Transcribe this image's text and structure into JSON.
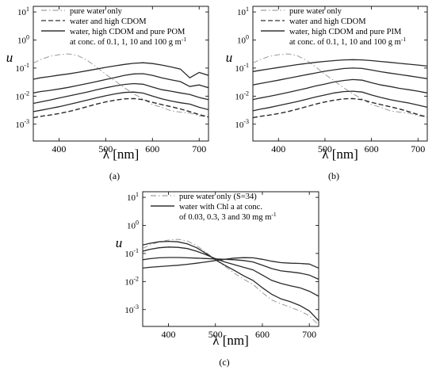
{
  "chart_data": [
    {
      "type": "line",
      "panel_label": "(a)",
      "xlabel": "λ [nm]",
      "ylabel": "u",
      "xlim": [
        345,
        720
      ],
      "ylim_log10": [
        -3.6,
        1.2
      ],
      "yscale": "log",
      "x_ticks": [
        "400",
        "500",
        "600",
        "700"
      ],
      "x_tick_values": [
        400,
        500,
        600,
        700
      ],
      "y_ticks": [
        {
          "base": "10",
          "exp": "1",
          "value": 10
        },
        {
          "base": "10",
          "exp": "0",
          "value": 1
        },
        {
          "base": "10",
          "exp": "-1",
          "value": 0.1
        },
        {
          "base": "10",
          "exp": "-2",
          "value": 0.01
        },
        {
          "base": "10",
          "exp": "-3",
          "value": 0.001
        }
      ],
      "legend": [
        {
          "text": "pure water only",
          "style": "dashdot",
          "color": "#a0a0a0"
        },
        {
          "text": "water and high CDOM",
          "style": "dashed",
          "color": "#333333"
        },
        {
          "text": "water, high CDOM and pure POM",
          "style": "solid",
          "color": "#333333"
        },
        {
          "text": "at conc. of 0.1, 1, 10 and 100 g m",
          "sup": "-1",
          "style": "none"
        }
      ],
      "series": [
        {
          "style": "dashdot",
          "x": [
            345,
            360,
            380,
            400,
            420,
            440,
            460,
            480,
            500,
            520,
            540,
            560,
            580,
            600,
            620,
            640,
            660,
            680,
            700,
            720
          ],
          "y": [
            0.15,
            0.2,
            0.26,
            0.3,
            0.32,
            0.28,
            0.19,
            0.11,
            0.06,
            0.035,
            0.02,
            0.012,
            0.008,
            0.005,
            0.004,
            0.003,
            0.0027,
            0.0025,
            0.002,
            0.0018
          ]
        },
        {
          "style": "dashed",
          "x": [
            345,
            360,
            380,
            400,
            420,
            440,
            460,
            480,
            500,
            520,
            540,
            560,
            580,
            600,
            620,
            640,
            660,
            680,
            700,
            720
          ],
          "y": [
            0.0017,
            0.0019,
            0.0021,
            0.0024,
            0.0028,
            0.0034,
            0.0042,
            0.0052,
            0.0062,
            0.0072,
            0.008,
            0.0082,
            0.0075,
            0.006,
            0.005,
            0.0042,
            0.0035,
            0.0028,
            0.0022,
            0.0018
          ]
        },
        {
          "style": "solid",
          "x": [
            345,
            360,
            380,
            400,
            420,
            440,
            460,
            480,
            500,
            520,
            540,
            560,
            580,
            600,
            620,
            640,
            660,
            680,
            700,
            720
          ],
          "y": [
            0.0028,
            0.0031,
            0.0036,
            0.0042,
            0.005,
            0.006,
            0.0072,
            0.0087,
            0.0103,
            0.012,
            0.0135,
            0.014,
            0.0128,
            0.01,
            0.008,
            0.0067,
            0.0058,
            0.0052,
            0.004,
            0.0033
          ]
        },
        {
          "style": "solid",
          "x": [
            345,
            360,
            380,
            400,
            420,
            440,
            460,
            480,
            500,
            520,
            540,
            560,
            580,
            600,
            620,
            640,
            660,
            680,
            700,
            720
          ],
          "y": [
            0.0055,
            0.0062,
            0.0072,
            0.0085,
            0.01,
            0.0118,
            0.014,
            0.0168,
            0.0198,
            0.023,
            0.026,
            0.028,
            0.0265,
            0.021,
            0.017,
            0.015,
            0.013,
            0.0115,
            0.009,
            0.0075
          ]
        },
        {
          "style": "solid",
          "x": [
            345,
            360,
            380,
            400,
            420,
            440,
            460,
            480,
            500,
            520,
            540,
            560,
            580,
            600,
            620,
            640,
            660,
            680,
            700,
            720
          ],
          "y": [
            0.013,
            0.0145,
            0.016,
            0.018,
            0.0205,
            0.024,
            0.028,
            0.033,
            0.039,
            0.046,
            0.055,
            0.062,
            0.063,
            0.055,
            0.045,
            0.038,
            0.033,
            0.022,
            0.025,
            0.02
          ]
        },
        {
          "style": "solid",
          "x": [
            345,
            360,
            380,
            400,
            420,
            440,
            460,
            480,
            500,
            520,
            540,
            560,
            580,
            600,
            620,
            640,
            660,
            680,
            700,
            720
          ],
          "y": [
            0.04,
            0.045,
            0.05,
            0.056,
            0.062,
            0.07,
            0.08,
            0.092,
            0.106,
            0.12,
            0.135,
            0.148,
            0.155,
            0.145,
            0.128,
            0.11,
            0.092,
            0.045,
            0.07,
            0.055
          ]
        }
      ]
    },
    {
      "type": "line",
      "panel_label": "(b)",
      "xlabel": "λ [nm]",
      "ylabel": "u",
      "xlim": [
        345,
        720
      ],
      "ylim_log10": [
        -3.6,
        1.2
      ],
      "yscale": "log",
      "x_ticks": [
        "400",
        "500",
        "600",
        "700"
      ],
      "x_tick_values": [
        400,
        500,
        600,
        700
      ],
      "y_ticks": [
        {
          "base": "10",
          "exp": "1",
          "value": 10
        },
        {
          "base": "10",
          "exp": "0",
          "value": 1
        },
        {
          "base": "10",
          "exp": "-1",
          "value": 0.1
        },
        {
          "base": "10",
          "exp": "-2",
          "value": 0.01
        },
        {
          "base": "10",
          "exp": "-3",
          "value": 0.001
        }
      ],
      "legend": [
        {
          "text": "pure water only",
          "style": "dashdot",
          "color": "#a0a0a0"
        },
        {
          "text": "water and high CDOM",
          "style": "dashed",
          "color": "#333333"
        },
        {
          "text": "water, high CDOM and pure PIM",
          "style": "solid",
          "color": "#333333"
        },
        {
          "text": "at conc. of 0.1, 1, 10 and 100 g m",
          "sup": "-1",
          "style": "none"
        }
      ],
      "series": [
        {
          "style": "dashdot",
          "x": [
            345,
            360,
            380,
            400,
            420,
            440,
            460,
            480,
            500,
            520,
            540,
            560,
            580,
            600,
            620,
            640,
            660,
            680,
            700,
            720
          ],
          "y": [
            0.15,
            0.2,
            0.26,
            0.3,
            0.32,
            0.28,
            0.19,
            0.11,
            0.06,
            0.035,
            0.02,
            0.012,
            0.008,
            0.005,
            0.004,
            0.003,
            0.0027,
            0.0025,
            0.002,
            0.0018
          ]
        },
        {
          "style": "dashed",
          "x": [
            345,
            360,
            380,
            400,
            420,
            440,
            460,
            480,
            500,
            520,
            540,
            560,
            580,
            600,
            620,
            640,
            660,
            680,
            700,
            720
          ],
          "y": [
            0.0017,
            0.0019,
            0.0021,
            0.0024,
            0.0028,
            0.0034,
            0.0042,
            0.0052,
            0.0062,
            0.0072,
            0.008,
            0.0082,
            0.0075,
            0.006,
            0.005,
            0.0042,
            0.0035,
            0.0028,
            0.0022,
            0.0018
          ]
        },
        {
          "style": "solid",
          "x": [
            345,
            360,
            380,
            400,
            420,
            440,
            460,
            480,
            500,
            520,
            540,
            560,
            580,
            600,
            620,
            640,
            660,
            680,
            700,
            720
          ],
          "y": [
            0.003,
            0.0034,
            0.0039,
            0.0046,
            0.0054,
            0.0064,
            0.0077,
            0.0093,
            0.011,
            0.013,
            0.0145,
            0.015,
            0.014,
            0.011,
            0.009,
            0.0075,
            0.0065,
            0.0057,
            0.0048,
            0.004
          ]
        },
        {
          "style": "solid",
          "x": [
            345,
            360,
            380,
            400,
            420,
            440,
            460,
            480,
            500,
            520,
            540,
            560,
            580,
            600,
            620,
            640,
            660,
            680,
            700,
            720
          ],
          "y": [
            0.0075,
            0.0085,
            0.0098,
            0.0115,
            0.0135,
            0.016,
            0.019,
            0.023,
            0.027,
            0.032,
            0.036,
            0.039,
            0.037,
            0.03,
            0.025,
            0.022,
            0.019,
            0.017,
            0.015,
            0.013
          ]
        },
        {
          "style": "solid",
          "x": [
            345,
            360,
            380,
            400,
            420,
            440,
            460,
            480,
            500,
            520,
            540,
            560,
            580,
            600,
            620,
            640,
            660,
            680,
            700,
            720
          ],
          "y": [
            0.025,
            0.028,
            0.032,
            0.037,
            0.043,
            0.05,
            0.058,
            0.067,
            0.077,
            0.087,
            0.096,
            0.1,
            0.097,
            0.085,
            0.074,
            0.066,
            0.059,
            0.053,
            0.047,
            0.042
          ]
        },
        {
          "style": "solid",
          "x": [
            345,
            360,
            380,
            400,
            420,
            440,
            460,
            480,
            500,
            520,
            540,
            560,
            580,
            600,
            620,
            640,
            660,
            680,
            700,
            720
          ],
          "y": [
            0.075,
            0.083,
            0.093,
            0.105,
            0.118,
            0.132,
            0.146,
            0.16,
            0.173,
            0.185,
            0.196,
            0.2,
            0.196,
            0.185,
            0.172,
            0.16,
            0.148,
            0.138,
            0.128,
            0.118
          ]
        }
      ]
    },
    {
      "type": "line",
      "panel_label": "(c)",
      "xlabel": "λ [nm]",
      "ylabel": "u",
      "xlim": [
        345,
        720
      ],
      "ylim_log10": [
        -3.6,
        1.2
      ],
      "yscale": "log",
      "x_ticks": [
        "400",
        "500",
        "600",
        "700"
      ],
      "x_tick_values": [
        400,
        500,
        600,
        700
      ],
      "y_ticks": [
        {
          "base": "10",
          "exp": "1",
          "value": 10
        },
        {
          "base": "10",
          "exp": "0",
          "value": 1
        },
        {
          "base": "10",
          "exp": "-1",
          "value": 0.1
        },
        {
          "base": "10",
          "exp": "-2",
          "value": 0.01
        },
        {
          "base": "10",
          "exp": "-3",
          "value": 0.001
        }
      ],
      "legend": [
        {
          "text": "pure water only (S=34)",
          "style": "dashdot",
          "color": "#a0a0a0"
        },
        {
          "text": "water with Chl a at conc.",
          "style": "solid",
          "color": "#333333"
        },
        {
          "text": "of 0.03, 0.3, 3 and 30 mg m",
          "sup": "-1",
          "style": "none"
        }
      ],
      "series": [
        {
          "style": "dashdot",
          "x": [
            345,
            360,
            380,
            400,
            420,
            440,
            460,
            480,
            500,
            520,
            540,
            560,
            580,
            600,
            620,
            640,
            660,
            680,
            700,
            720
          ],
          "y": [
            0.15,
            0.2,
            0.26,
            0.3,
            0.32,
            0.28,
            0.19,
            0.11,
            0.06,
            0.035,
            0.02,
            0.012,
            0.008,
            0.004,
            0.0022,
            0.0016,
            0.0012,
            0.0009,
            0.0006,
            0.00028
          ]
        },
        {
          "style": "solid",
          "x": [
            345,
            360,
            380,
            400,
            420,
            440,
            460,
            480,
            500,
            520,
            540,
            560,
            580,
            600,
            620,
            640,
            660,
            680,
            700,
            720
          ],
          "y": [
            0.2,
            0.23,
            0.26,
            0.27,
            0.26,
            0.22,
            0.16,
            0.1,
            0.06,
            0.038,
            0.025,
            0.016,
            0.011,
            0.006,
            0.0035,
            0.0024,
            0.0019,
            0.0014,
            0.0009,
            0.0004
          ]
        },
        {
          "style": "solid",
          "x": [
            345,
            360,
            380,
            400,
            420,
            440,
            460,
            480,
            500,
            520,
            540,
            560,
            580,
            600,
            620,
            640,
            660,
            680,
            700,
            720
          ],
          "y": [
            0.12,
            0.14,
            0.16,
            0.17,
            0.165,
            0.15,
            0.12,
            0.09,
            0.065,
            0.05,
            0.04,
            0.032,
            0.026,
            0.017,
            0.011,
            0.0085,
            0.007,
            0.006,
            0.0045,
            0.003
          ]
        },
        {
          "style": "solid",
          "x": [
            345,
            360,
            380,
            400,
            420,
            440,
            460,
            480,
            500,
            520,
            540,
            560,
            580,
            600,
            620,
            640,
            660,
            680,
            700,
            720
          ],
          "y": [
            0.06,
            0.065,
            0.07,
            0.072,
            0.072,
            0.07,
            0.068,
            0.066,
            0.064,
            0.062,
            0.06,
            0.056,
            0.05,
            0.038,
            0.029,
            0.024,
            0.022,
            0.02,
            0.017,
            0.012
          ]
        },
        {
          "style": "solid",
          "x": [
            345,
            360,
            380,
            400,
            420,
            440,
            460,
            480,
            500,
            520,
            540,
            560,
            580,
            600,
            620,
            640,
            660,
            680,
            700,
            720
          ],
          "y": [
            0.03,
            0.032,
            0.034,
            0.036,
            0.038,
            0.041,
            0.045,
            0.05,
            0.056,
            0.062,
            0.068,
            0.071,
            0.07,
            0.062,
            0.053,
            0.047,
            0.045,
            0.044,
            0.042,
            0.03
          ]
        }
      ]
    }
  ]
}
